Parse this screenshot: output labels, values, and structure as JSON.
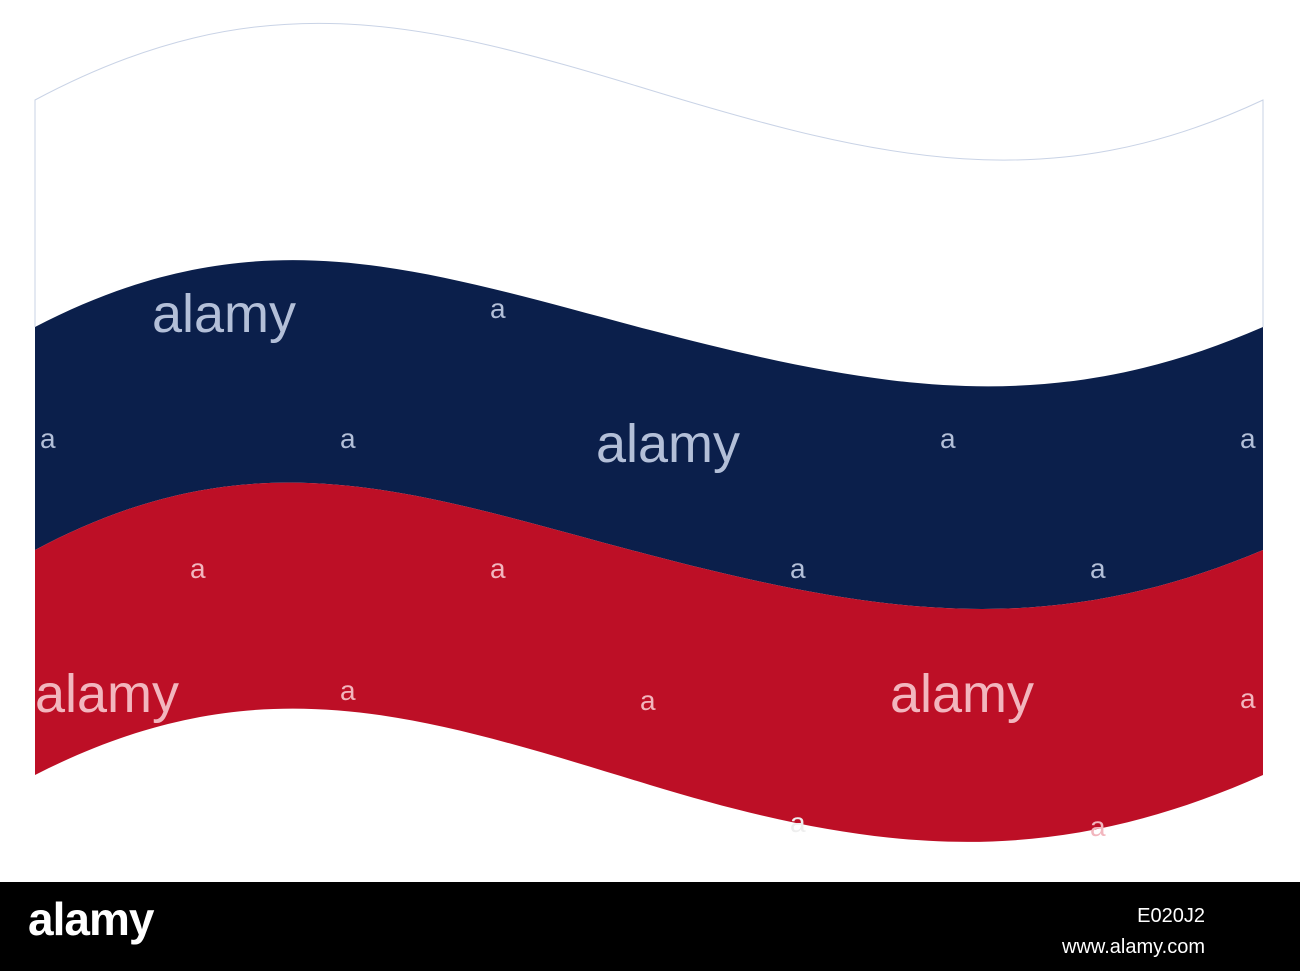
{
  "image": {
    "subject": "waving-flag",
    "stripes": [
      {
        "name": "white",
        "color": "#ffffff"
      },
      {
        "name": "blue",
        "color": "#0b1f4b"
      },
      {
        "name": "red",
        "color": "#bd0f26"
      }
    ],
    "outline_color": "#c9d3e6"
  },
  "watermark": {
    "word": "alamy",
    "letter": "a",
    "color_on_blue": "#b3bfd8",
    "color_on_red": "#f2b6be",
    "color_on_white": "#eeeeee"
  },
  "footer": {
    "logo": "alamy",
    "image_id": "E020J2",
    "url": "www.alamy.com"
  }
}
